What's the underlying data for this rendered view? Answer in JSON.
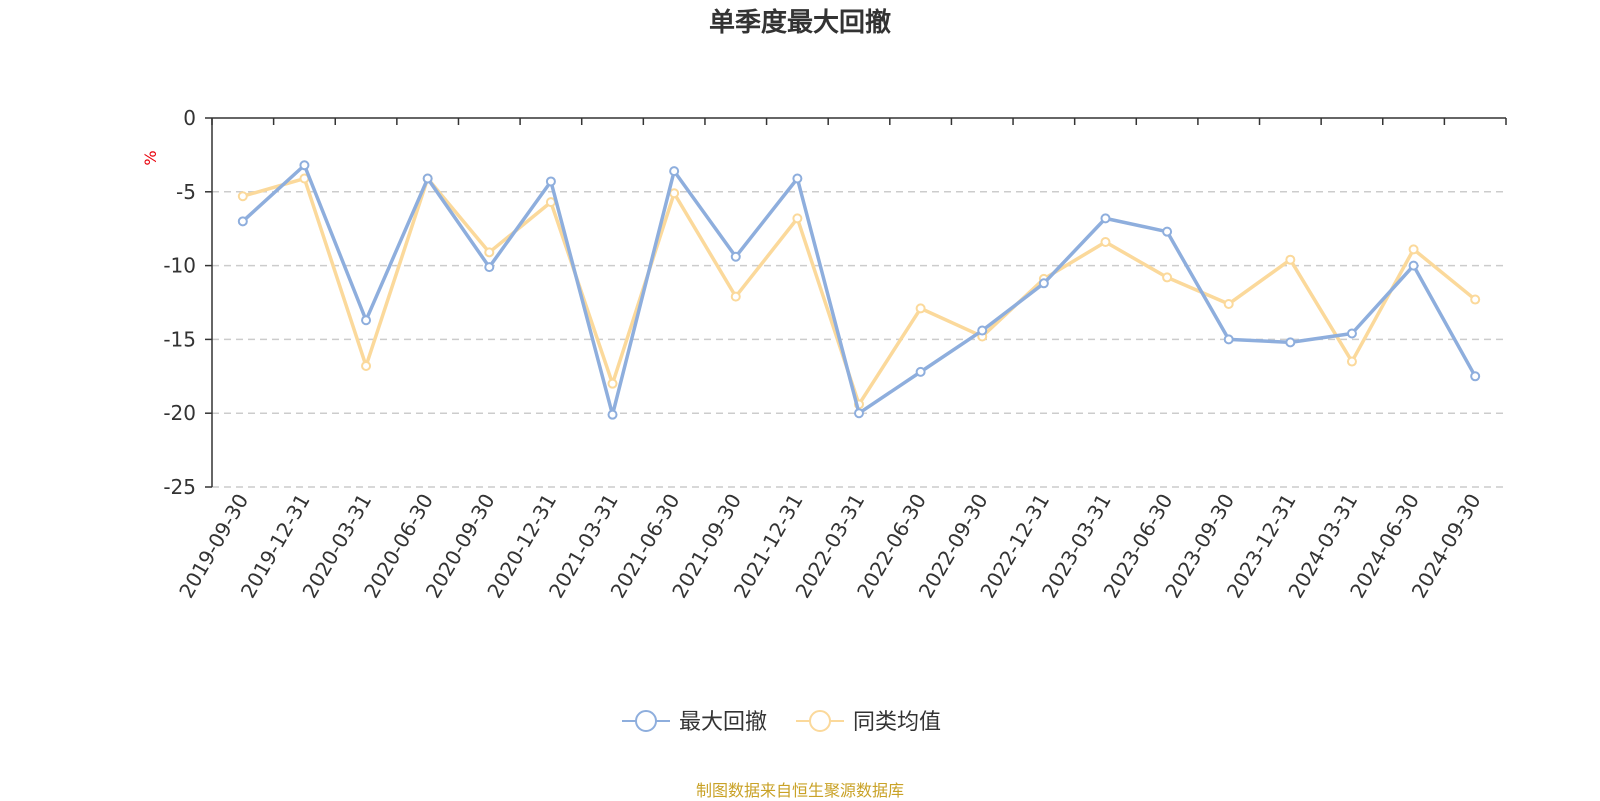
{
  "chart_data": {
    "type": "line",
    "title": "单季度最大回撤",
    "ylabel": "%",
    "xlabel": "",
    "ylim": [
      -25,
      0
    ],
    "yticks": [
      0,
      -5,
      -10,
      -15,
      -20,
      -25
    ],
    "grid": true,
    "legend_position": "bottom-center",
    "categories": [
      "2019-09-30",
      "2019-12-31",
      "2020-03-31",
      "2020-06-30",
      "2020-09-30",
      "2020-12-31",
      "2021-03-31",
      "2021-06-30",
      "2021-09-30",
      "2021-12-31",
      "2022-03-31",
      "2022-06-30",
      "2022-09-30",
      "2022-12-31",
      "2023-03-31",
      "2023-06-30",
      "2023-09-30",
      "2023-12-31",
      "2024-03-31",
      "2024-06-30",
      "2024-09-30"
    ],
    "series": [
      {
        "name": "最大回撤",
        "color": "#8eaedd",
        "values": [
          -7.0,
          -3.2,
          -13.7,
          -4.1,
          -10.1,
          -4.3,
          -20.1,
          -3.6,
          -9.4,
          -4.1,
          -20.0,
          -17.2,
          -14.4,
          -11.2,
          -6.8,
          -7.7,
          -15.0,
          -15.2,
          -14.6,
          -10.0,
          -17.5
        ]
      },
      {
        "name": "同类均值",
        "color": "#fbd99b",
        "values": [
          -5.3,
          -4.1,
          -16.8,
          -4.1,
          -9.1,
          -5.7,
          -18.0,
          -5.1,
          -12.1,
          -6.8,
          -19.4,
          -12.9,
          -14.8,
          -10.9,
          -8.4,
          -10.8,
          -12.6,
          -9.6,
          -16.5,
          -8.9,
          -12.3
        ]
      }
    ],
    "source_note": "制图数据来自恒生聚源数据库"
  }
}
